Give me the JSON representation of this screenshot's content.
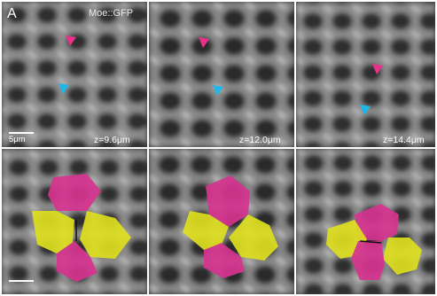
{
  "figure": {
    "panel_letter": "A",
    "marker_label": "Moe::GFP",
    "scale_label": "5μm",
    "depth_labels": [
      "z=9.6μm",
      "z=12.0μm",
      "z=14.4μm"
    ]
  },
  "colors": {
    "magenta": "#d6338f",
    "yellow": "#dede20",
    "cyan_arrow": "#1fb6e8",
    "magenta_arrow": "#ea2f8c",
    "background_gray": "#3a3a3a"
  },
  "arrows": [
    "magenta-arrowhead",
    "cyan-arrowhead"
  ]
}
